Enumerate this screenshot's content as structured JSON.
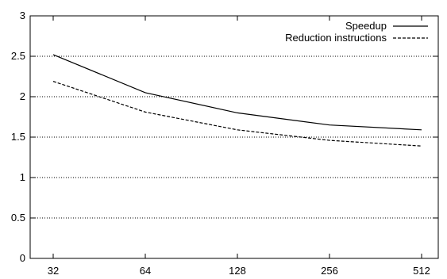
{
  "chart_data": {
    "type": "line",
    "categories": [
      "32",
      "64",
      "128",
      "256",
      "512"
    ],
    "ylim": [
      0,
      3
    ],
    "yticks": [
      0,
      0.5,
      1,
      1.5,
      2,
      2.5,
      3
    ],
    "ytick_labels": [
      "0",
      "0.5",
      "1",
      "1.5",
      "2",
      "2.5",
      "3"
    ],
    "grid": "horizontal dotted",
    "legend": "top-right",
    "series": [
      {
        "name": "Speedup",
        "values": [
          2.52,
          2.05,
          1.8,
          1.65,
          1.59
        ],
        "style": "solid",
        "color": "#000000"
      },
      {
        "name": "Reduction instructions",
        "values": [
          2.19,
          1.81,
          1.59,
          1.46,
          1.39
        ],
        "style": "dashed",
        "color": "#000000"
      }
    ]
  }
}
